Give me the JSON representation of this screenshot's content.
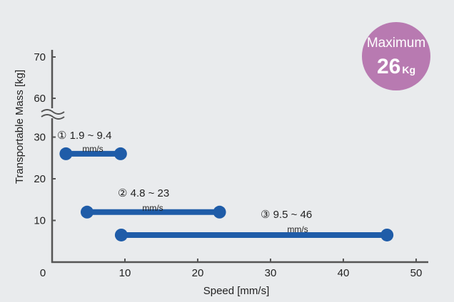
{
  "chart_data": {
    "type": "range-bar",
    "xlabel": "Speed [mm/s]",
    "ylabel": "Transportable Mass [kg]",
    "xlim": [
      0,
      52
    ],
    "ylim": [
      0,
      70
    ],
    "y_axis_break": "between 30 and 60",
    "grid": false,
    "x_ticks": [
      {
        "value": 0,
        "label": "0"
      },
      {
        "value": 10,
        "label": "10"
      },
      {
        "value": 20,
        "label": "20"
      },
      {
        "value": 30,
        "label": "30"
      },
      {
        "value": 40,
        "label": "40"
      },
      {
        "value": 50,
        "label": "50"
      }
    ],
    "y_ticks": [
      {
        "value": 10,
        "label": "10"
      },
      {
        "value": 20,
        "label": "20"
      },
      {
        "value": 30,
        "label": "30"
      },
      {
        "value": 60,
        "label": "60"
      },
      {
        "value": 70,
        "label": "70"
      }
    ],
    "series_color": "#1f5ca8",
    "ranges": [
      {
        "label": "① 1.9 ~ 9.4",
        "unit": "mm/s",
        "x_start": 1.9,
        "x_end": 9.4,
        "mass": 26
      },
      {
        "label": "② 4.8 ~ 23",
        "unit": "mm/s",
        "x_start": 4.8,
        "x_end": 23,
        "mass": 12
      },
      {
        "label": "③ 9.5 ~ 46",
        "unit": "mm/s",
        "x_start": 9.5,
        "x_end": 46,
        "mass": 6.5
      }
    ],
    "badge": {
      "line1": "Maximum",
      "value": "26",
      "unit": "Kg",
      "color": "#b87ab1"
    }
  }
}
